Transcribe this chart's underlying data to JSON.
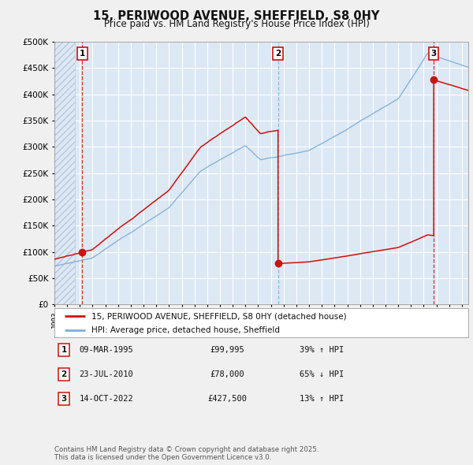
{
  "title": "15, PERIWOOD AVENUE, SHEFFIELD, S8 0HY",
  "subtitle": "Price paid vs. HM Land Registry's House Price Index (HPI)",
  "ylim": [
    0,
    500000
  ],
  "yticks": [
    0,
    50000,
    100000,
    150000,
    200000,
    250000,
    300000,
    350000,
    400000,
    450000,
    500000
  ],
  "ytick_labels": [
    "£0",
    "£50K",
    "£100K",
    "£150K",
    "£200K",
    "£250K",
    "£300K",
    "£350K",
    "£400K",
    "£450K",
    "£500K"
  ],
  "hpi_color": "#7dafd9",
  "price_color": "#cc1111",
  "background_color": "#dde8f5",
  "plot_bg": "#dde8f5",
  "grid_color": "#ffffff",
  "hatch_color": "#b8c8db",
  "transaction_dates": [
    1995.19,
    2010.56,
    2022.79
  ],
  "transaction_prices": [
    99995,
    78000,
    427500
  ],
  "transaction_labels": [
    "1",
    "2",
    "3"
  ],
  "vline_colors": [
    "#cc1111",
    "#7dafd9",
    "#cc1111"
  ],
  "vline_styles": [
    "--",
    "--",
    "--"
  ],
  "legend_label_price": "15, PERIWOOD AVENUE, SHEFFIELD, S8 0HY (detached house)",
  "legend_label_hpi": "HPI: Average price, detached house, Sheffield",
  "table_rows": [
    [
      "1",
      "09-MAR-1995",
      "£99,995",
      "39% ↑ HPI"
    ],
    [
      "2",
      "23-JUL-2010",
      "£78,000",
      "65% ↓ HPI"
    ],
    [
      "3",
      "14-OCT-2022",
      "£427,500",
      "13% ↑ HPI"
    ]
  ],
  "footnote": "Contains HM Land Registry data © Crown copyright and database right 2025.\nThis data is licensed under the Open Government Licence v3.0.",
  "xmin": 1993.0,
  "xmax": 2025.5,
  "hpi_seed": 42,
  "red_seed": 7
}
